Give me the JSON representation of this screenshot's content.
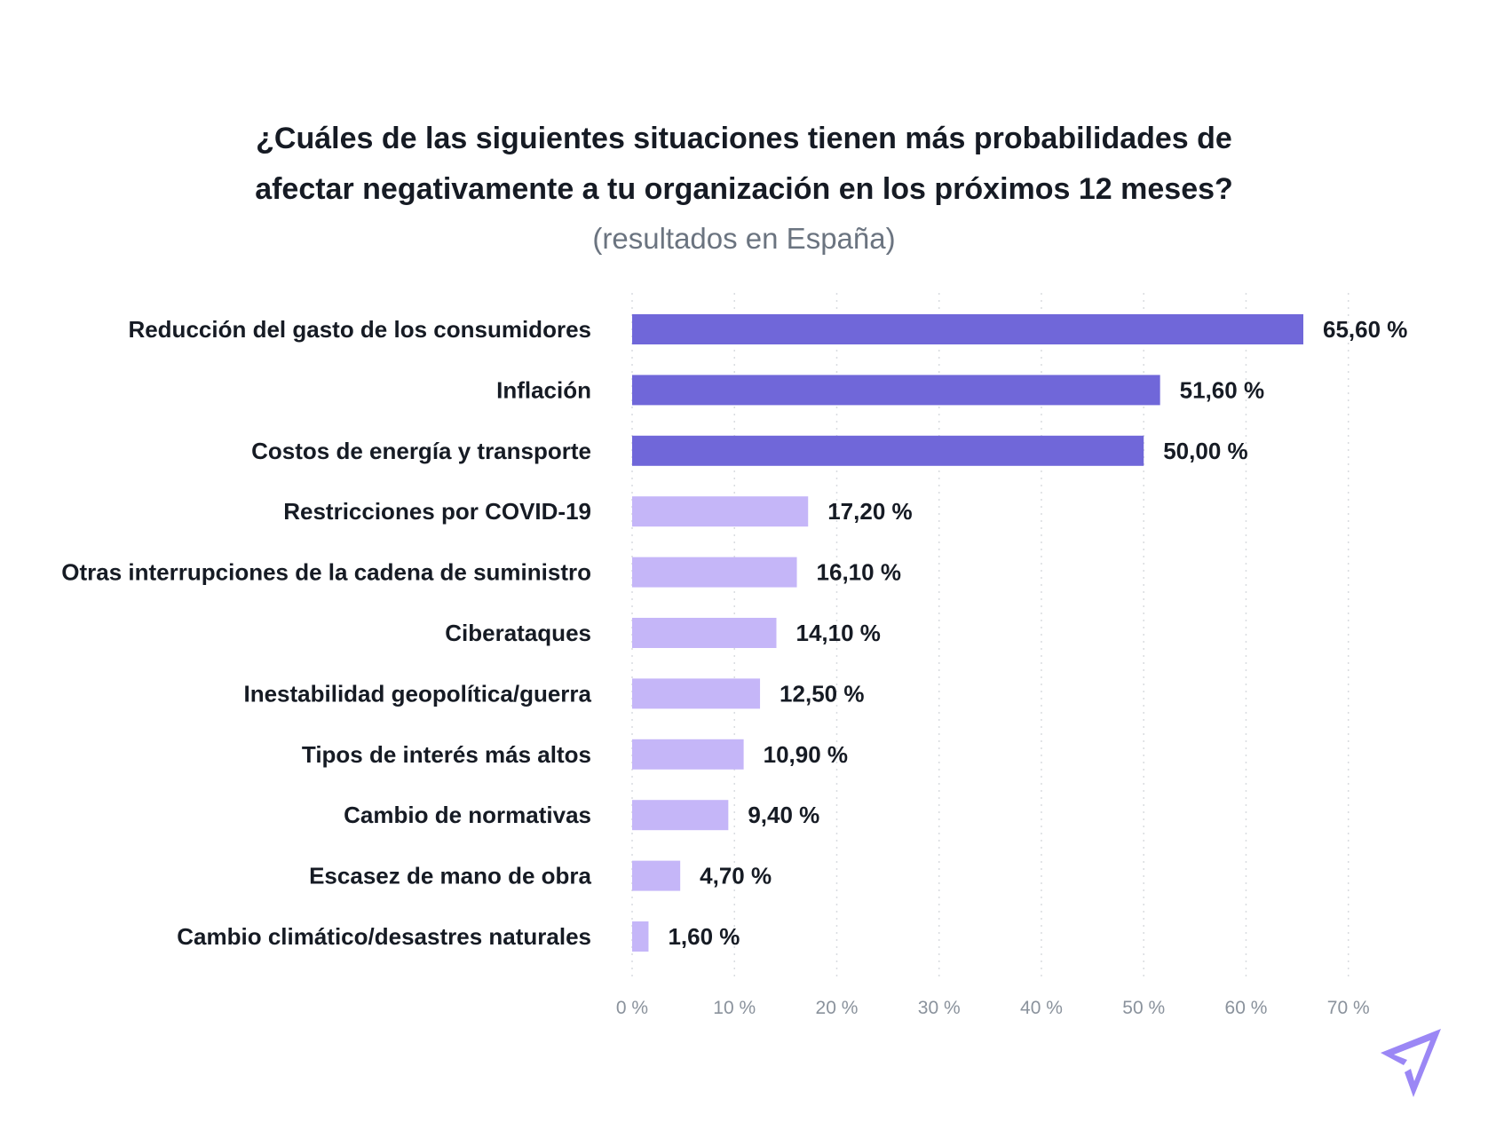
{
  "chart_data": {
    "type": "bar",
    "orientation": "horizontal",
    "title_line1": "¿Cuáles de las siguientes situaciones tienen más probabilidades de",
    "title_line2": "afectar negativamente a tu organización en los próximos 12 meses?",
    "subtitle": "(resultados en España)",
    "categories": [
      "Reducción del gasto de los consumidores",
      "Inflación",
      "Costos de energía y transporte",
      "Restricciones por COVID-19",
      "Otras interrupciones de la cadena de suministro",
      "Ciberataques",
      "Inestabilidad geopolítica/guerra",
      "Tipos de interés más altos",
      "Cambio de normativas",
      "Escasez de mano de obra",
      "Cambio climático/desastres naturales"
    ],
    "values": [
      65.6,
      51.6,
      50.0,
      17.2,
      16.1,
      14.1,
      12.5,
      10.9,
      9.4,
      4.7,
      1.6
    ],
    "value_labels": [
      "65,60 %",
      "51,60 %",
      "50,00 %",
      "17,20 %",
      "16,10 %",
      "14,10 %",
      "12,50 %",
      "10,90 %",
      "9,40 %",
      "4,70 %",
      "1,60 %"
    ],
    "highlight_count": 3,
    "xlim": [
      0,
      70
    ],
    "x_ticks": [
      "0 %",
      "10 %",
      "20 %",
      "30 %",
      "40 %",
      "50 %",
      "60 %",
      "70 %"
    ],
    "grid": "vertical dotted",
    "colors": {
      "highlight": "#7067d9",
      "normal": "#c5b6f8",
      "logo": "#9b87f5"
    }
  },
  "logo_icon": "paper-plane-icon"
}
